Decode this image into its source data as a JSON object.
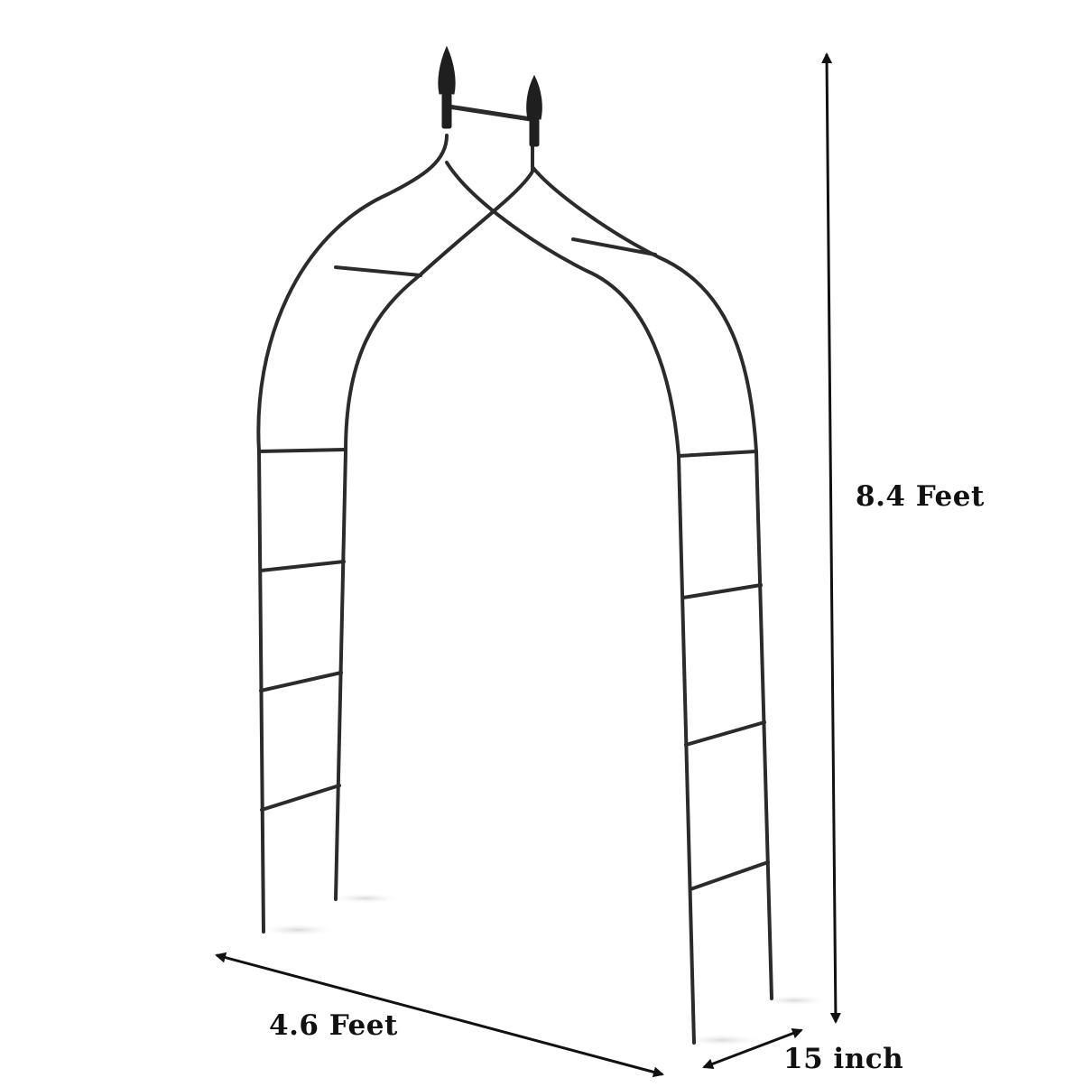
{
  "product": {
    "name": "garden-arch-trellis",
    "frame_color": "#2b2b2b",
    "background_color": "#ffffff"
  },
  "dimensions": {
    "height_label": "8.4 Feet",
    "width_label": "4.6 Feet",
    "depth_label": "15 inch",
    "arrow_color": "#111111"
  }
}
